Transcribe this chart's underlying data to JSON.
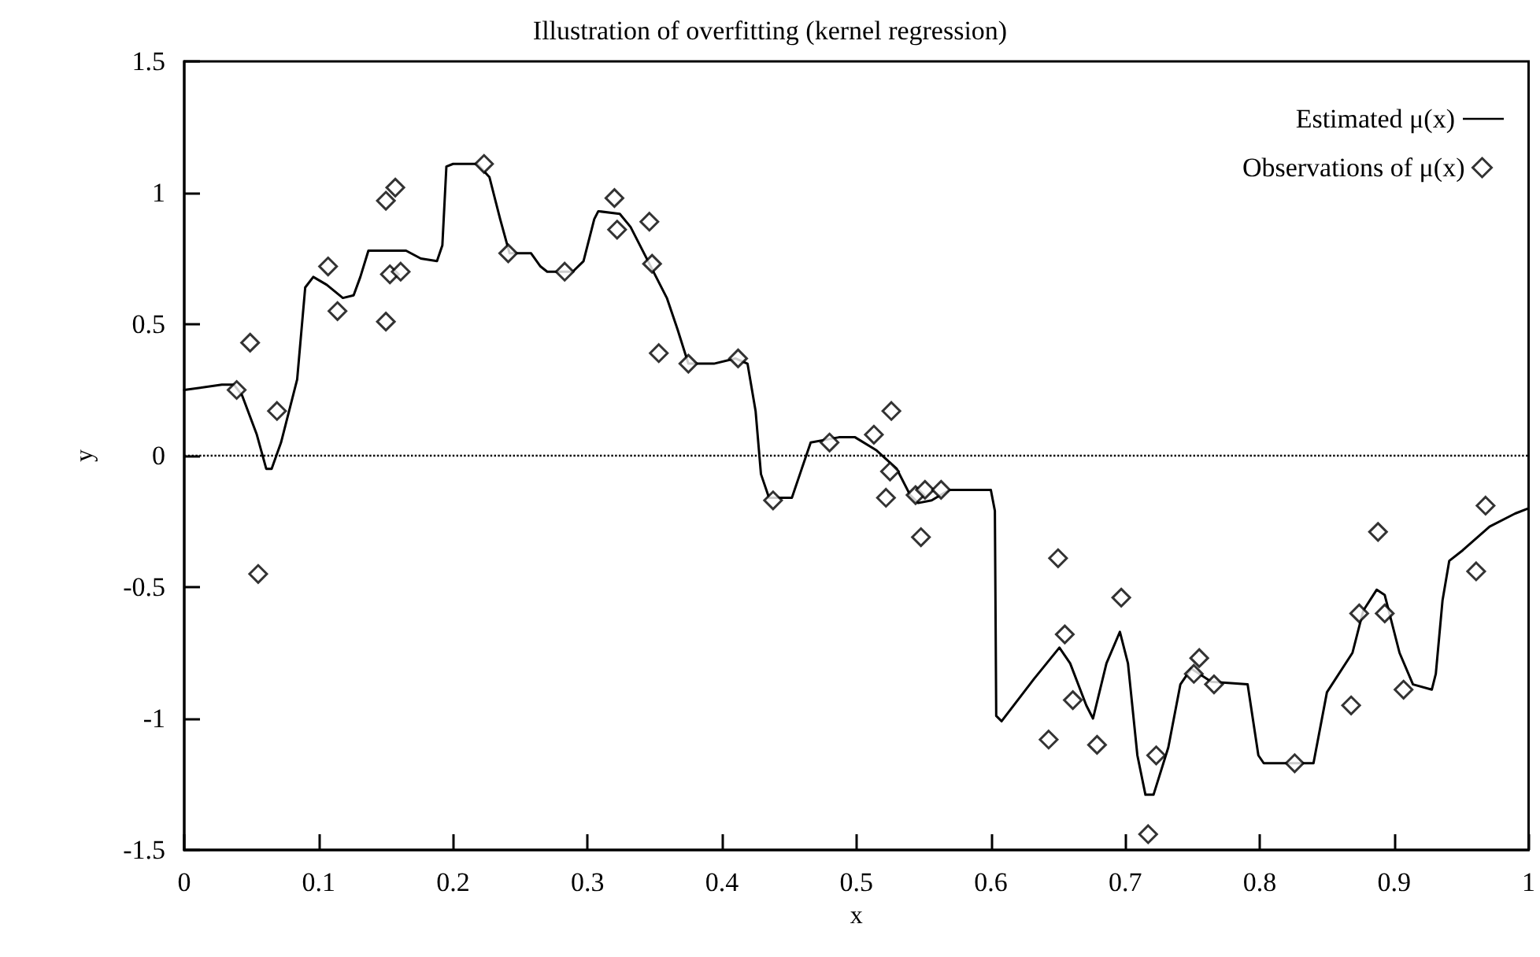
{
  "chart_data": {
    "type": "line",
    "title": "Illustration of overfitting (kernel regression)",
    "xlabel": "x",
    "ylabel": "y",
    "xlim": [
      0,
      1
    ],
    "xticks": [
      0,
      0.1,
      0.2,
      0.3,
      0.4,
      0.5,
      0.6,
      0.7,
      0.8,
      0.9,
      1
    ],
    "ylim": [
      -1.5,
      1.5
    ],
    "yticks": [
      -1.5,
      -1,
      -0.5,
      0,
      0.5,
      1,
      1.5
    ],
    "grid": false,
    "legend": "top right",
    "ref_lines": [
      {
        "axis": "y",
        "value": 0,
        "color": "#000000",
        "line_style": "dotted"
      }
    ],
    "series": [
      {
        "name": "Estimated μ(x)",
        "color": "#000000",
        "marker": "none",
        "line_style": "solid",
        "x": [
          0,
          0.028,
          0.037,
          0.043,
          0.054,
          0.061,
          0.065,
          0.072,
          0.084,
          0.09,
          0.096,
          0.106,
          0.118,
          0.126,
          0.131,
          0.137,
          0.165,
          0.176,
          0.188,
          0.192,
          0.195,
          0.2,
          0.218,
          0.227,
          0.235,
          0.242,
          0.258,
          0.265,
          0.27,
          0.289,
          0.297,
          0.305,
          0.308,
          0.324,
          0.332,
          0.343,
          0.359,
          0.367,
          0.375,
          0.394,
          0.41,
          0.419,
          0.425,
          0.429,
          0.435,
          0.452,
          0.458,
          0.466,
          0.487,
          0.499,
          0.515,
          0.53,
          0.54,
          0.546,
          0.556,
          0.569,
          0.6,
          0.603,
          0.604,
          0.608,
          0.632,
          0.651,
          0.659,
          0.671,
          0.676,
          0.686,
          0.696,
          0.702,
          0.709,
          0.715,
          0.721,
          0.732,
          0.741,
          0.749,
          0.764,
          0.791,
          0.799,
          0.803,
          0.84,
          0.85,
          0.869,
          0.877,
          0.887,
          0.893,
          0.904,
          0.914,
          0.928,
          0.931,
          0.936,
          0.941,
          0.951,
          0.971,
          0.99,
          1
        ],
        "values": [
          0.25,
          0.27,
          0.27,
          0.23,
          0.08,
          -0.05,
          -0.05,
          0.05,
          0.29,
          0.64,
          0.68,
          0.65,
          0.6,
          0.61,
          0.68,
          0.78,
          0.78,
          0.75,
          0.74,
          0.8,
          1.1,
          1.11,
          1.11,
          1.06,
          0.9,
          0.77,
          0.77,
          0.72,
          0.7,
          0.7,
          0.74,
          0.9,
          0.93,
          0.92,
          0.87,
          0.76,
          0.6,
          0.48,
          0.35,
          0.35,
          0.37,
          0.35,
          0.17,
          -0.07,
          -0.16,
          -0.16,
          -0.07,
          0.05,
          0.07,
          0.07,
          0.02,
          -0.05,
          -0.15,
          -0.18,
          -0.17,
          -0.13,
          -0.13,
          -0.21,
          -0.99,
          -1.01,
          -0.85,
          -0.73,
          -0.79,
          -0.95,
          -1,
          -0.79,
          -0.67,
          -0.79,
          -1.14,
          -1.29,
          -1.29,
          -1.11,
          -0.87,
          -0.81,
          -0.86,
          -0.87,
          -1.14,
          -1.17,
          -1.17,
          -0.9,
          -0.75,
          -0.59,
          -0.51,
          -0.53,
          -0.75,
          -0.87,
          -0.89,
          -0.83,
          -0.55,
          -0.4,
          -0.36,
          -0.27,
          -0.22,
          -0.2
        ]
      },
      {
        "name": "Observations of μ(x)",
        "type": "scatter",
        "color": "#000000",
        "marker": "diamond",
        "x": [
          0.039,
          0.049,
          0.069,
          0.055,
          0.107,
          0.114,
          0.15,
          0.157,
          0.15,
          0.153,
          0.161,
          0.223,
          0.241,
          0.283,
          0.32,
          0.322,
          0.346,
          0.348,
          0.353,
          0.375,
          0.412,
          0.438,
          0.48,
          0.513,
          0.526,
          0.525,
          0.522,
          0.544,
          0.551,
          0.563,
          0.548,
          0.65,
          0.655,
          0.661,
          0.643,
          0.679,
          0.697,
          0.723,
          0.717,
          0.755,
          0.751,
          0.766,
          0.826,
          0.868,
          0.874,
          0.888,
          0.893,
          0.907,
          0.961,
          0.968
        ],
        "values": [
          0.25,
          0.43,
          0.17,
          -0.45,
          0.72,
          0.55,
          0.97,
          1.02,
          0.51,
          0.69,
          0.7,
          1.11,
          0.77,
          0.7,
          0.98,
          0.86,
          0.89,
          0.73,
          0.39,
          0.35,
          0.37,
          -0.17,
          0.05,
          0.08,
          0.17,
          -0.06,
          -0.16,
          -0.15,
          -0.13,
          -0.13,
          -0.31,
          -0.39,
          -0.68,
          -0.93,
          -1.08,
          -1.1,
          -0.54,
          -1.14,
          -1.44,
          -0.77,
          -0.83,
          -0.87,
          -1.17,
          -0.95,
          -0.6,
          -0.29,
          -0.6,
          -0.89,
          -0.44,
          -0.19
        ]
      }
    ]
  }
}
